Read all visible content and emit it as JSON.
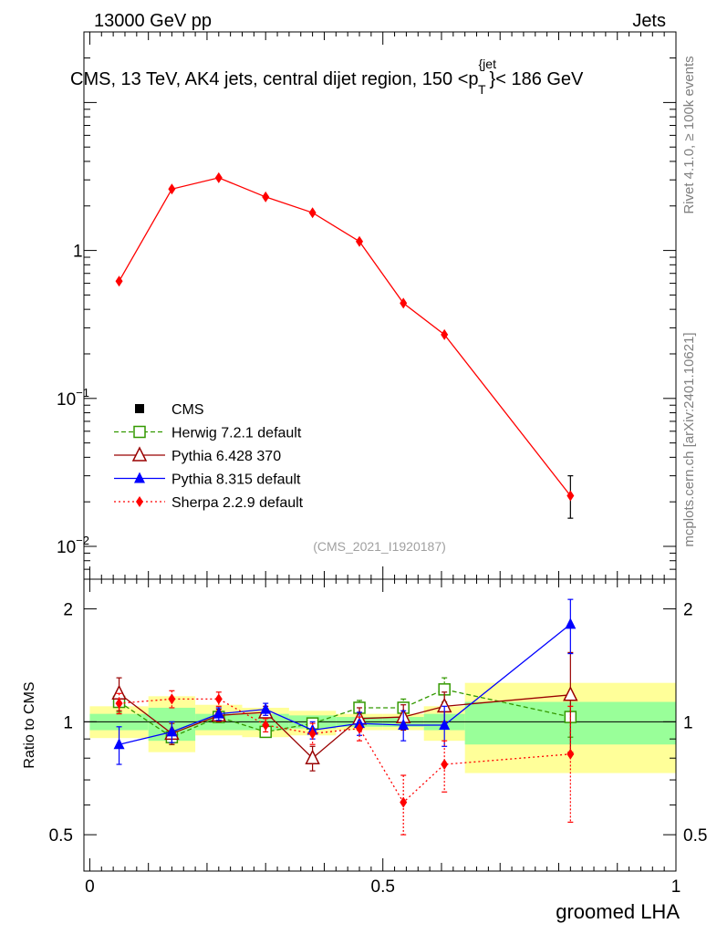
{
  "header": {
    "left": "13000 GeV pp",
    "right": "Jets"
  },
  "side": {
    "rivet": "Rivet 4.1.0, ≥ 100k events",
    "mcplots": "mcplots.cern.ch [arXiv:2401.10621]"
  },
  "chart_data": [
    {
      "type": "line",
      "title_main": "CMS, 13 TeV, AK4 jets, central dijet region, 150 <p",
      "title_sup": "{jet",
      "title_sub": "T",
      "title_tail": "}< 186 GeV",
      "yscale": "log",
      "ylim": [
        0.006,
        30
      ],
      "xlim": [
        -0.01,
        1.0
      ],
      "y_ticks": [
        {
          "value": 0.01,
          "label": "10",
          "sup": "−2"
        },
        {
          "value": 0.1,
          "label": "10",
          "sup": "−1"
        },
        {
          "value": 1,
          "label": "1",
          "sup": ""
        }
      ],
      "x": [
        0.05,
        0.14,
        0.22,
        0.3,
        0.38,
        0.46,
        0.535,
        0.605,
        0.82
      ],
      "series": [
        {
          "name": "Sherpa 2.2.9 default",
          "color": "#ff0000",
          "values": [
            0.62,
            2.6,
            3.1,
            2.3,
            1.8,
            1.15,
            0.44,
            0.27,
            0.022
          ]
        }
      ],
      "cms_errorbar": {
        "x": 0.82,
        "low": 0.0155,
        "high": 0.03
      },
      "watermark": "(CMS_2021_I1920187)",
      "legend": [
        {
          "label": "CMS",
          "marker": "square-filled",
          "color": "#000000"
        },
        {
          "label": "Herwig 7.2.1 default",
          "marker": "square-open",
          "color": "#339900"
        },
        {
          "label": "Pythia 6.428 370",
          "marker": "triangle-open",
          "color": "#990000"
        },
        {
          "label": "Pythia 8.315 default",
          "marker": "triangle-filled",
          "color": "#0000ff"
        },
        {
          "label": "Sherpa 2.2.9 default",
          "marker": "diamond",
          "color": "#ff0000"
        }
      ]
    },
    {
      "type": "line",
      "ylabel": "Ratio to CMS",
      "xlabel": "groomed LHA",
      "yscale": "log",
      "ylim": [
        0.4,
        2.4
      ],
      "xlim": [
        -0.01,
        1.0
      ],
      "y_ticks": [
        {
          "value": 0.5,
          "label": "0.5"
        },
        {
          "value": 1,
          "label": "1"
        },
        {
          "value": 2,
          "label": "2"
        }
      ],
      "x_ticks": [
        {
          "value": 0,
          "label": "0"
        },
        {
          "value": 0.5,
          "label": "0.5"
        },
        {
          "value": 1,
          "label": "1"
        }
      ],
      "bins": [
        {
          "x0": 0.0,
          "x1": 0.1,
          "in_lo": 0.95,
          "in_hi": 1.05,
          "out_lo": 0.905,
          "out_hi": 1.1
        },
        {
          "x0": 0.1,
          "x1": 0.18,
          "in_lo": 0.89,
          "in_hi": 1.09,
          "out_lo": 0.83,
          "out_hi": 1.17
        },
        {
          "x0": 0.18,
          "x1": 0.26,
          "in_lo": 0.95,
          "in_hi": 1.05,
          "out_lo": 0.92,
          "out_hi": 1.11
        },
        {
          "x0": 0.26,
          "x1": 0.34,
          "in_lo": 0.95,
          "in_hi": 1.05,
          "out_lo": 0.91,
          "out_hi": 1.09
        },
        {
          "x0": 0.34,
          "x1": 0.42,
          "in_lo": 0.96,
          "in_hi": 1.04,
          "out_lo": 0.92,
          "out_hi": 1.07
        },
        {
          "x0": 0.42,
          "x1": 0.5,
          "in_lo": 0.97,
          "in_hi": 1.03,
          "out_lo": 0.95,
          "out_hi": 1.05
        },
        {
          "x0": 0.5,
          "x1": 0.57,
          "in_lo": 0.97,
          "in_hi": 1.03,
          "out_lo": 0.95,
          "out_hi": 1.05
        },
        {
          "x0": 0.57,
          "x1": 0.64,
          "in_lo": 0.95,
          "in_hi": 1.05,
          "out_lo": 0.89,
          "out_hi": 1.1
        },
        {
          "x0": 0.64,
          "x1": 1.0,
          "in_lo": 0.87,
          "in_hi": 1.13,
          "out_lo": 0.73,
          "out_hi": 1.27
        }
      ],
      "x": [
        0.05,
        0.14,
        0.22,
        0.3,
        0.38,
        0.46,
        0.535,
        0.605,
        0.82
      ],
      "series": [
        {
          "name": "Herwig 7.2.1 default",
          "color": "#339900",
          "dash": "5,3",
          "marker": "square-open",
          "values": [
            1.13,
            0.91,
            1.03,
            0.94,
            0.99,
            1.09,
            1.09,
            1.22,
            1.03
          ],
          "err": [
            0.07,
            0.04,
            0.03,
            0.03,
            0.03,
            0.05,
            0.06,
            0.09,
            0.12
          ]
        },
        {
          "name": "Pythia 6.428 370",
          "color": "#990000",
          "dash": "",
          "marker": "triangle-open",
          "values": [
            1.19,
            0.93,
            1.04,
            1.06,
            0.8,
            1.02,
            1.03,
            1.1,
            1.18
          ],
          "err": [
            0.12,
            0.06,
            0.04,
            0.04,
            0.06,
            0.07,
            0.08,
            0.1,
            0.35
          ]
        },
        {
          "name": "Pythia 8.315 default",
          "color": "#0000ff",
          "dash": "",
          "marker": "triangle-filled",
          "values": [
            0.87,
            0.94,
            1.05,
            1.08,
            0.95,
            0.99,
            0.98,
            0.98,
            1.82
          ],
          "err": [
            0.1,
            0.06,
            0.04,
            0.04,
            0.05,
            0.07,
            0.09,
            0.12,
            0.3
          ]
        },
        {
          "name": "Sherpa 2.2.9 default",
          "color": "#ff0000",
          "dash": "2,3",
          "marker": "diamond",
          "values": [
            1.12,
            1.15,
            1.15,
            0.98,
            0.93,
            0.96,
            0.61,
            0.77,
            0.82
          ],
          "err": [
            0.07,
            0.06,
            0.05,
            0.04,
            0.06,
            0.07,
            0.11,
            0.12,
            0.28
          ]
        }
      ]
    }
  ]
}
